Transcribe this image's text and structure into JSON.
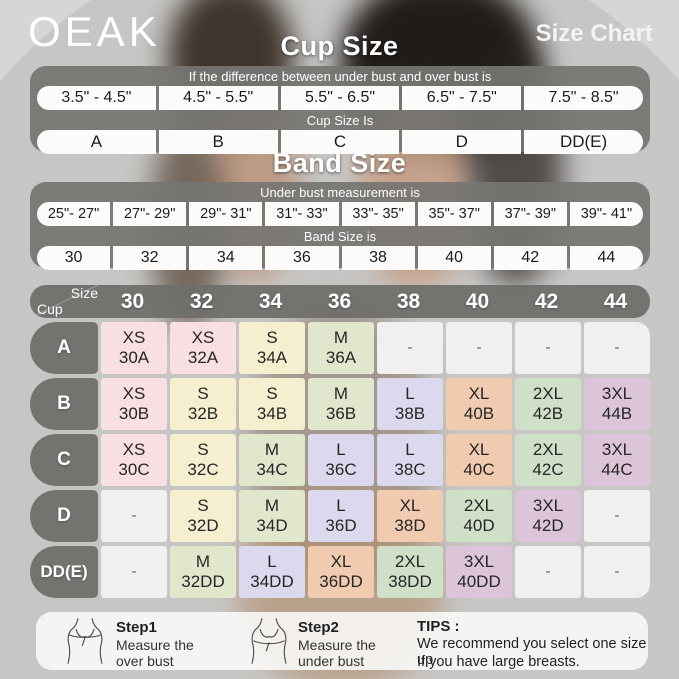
{
  "header": {
    "logo": "OEAK",
    "page_label": "Size Chart"
  },
  "cup_size": {
    "title": "Cup Size",
    "caption_top": "If the  difference between under bust and over bust is",
    "ranges": [
      "3.5\" -  4.5\"",
      "4.5\" -  5.5\"",
      "5.5\" -  6.5\"",
      "6.5\" -  7.5\"",
      "7.5\" -  8.5\""
    ],
    "caption_bottom": "Cup Size Is",
    "cups": [
      "A",
      "B",
      "C",
      "D",
      "DD(E)"
    ]
  },
  "band_size": {
    "title": "Band Size",
    "caption_top": "Under bust measurement is",
    "ranges": [
      "25\"- 27\"",
      "27\"- 29\"",
      "29\"- 31\"",
      "31\"- 33\"",
      "33\"- 35\"",
      "35\"- 37\"",
      "37\"- 39\"",
      "39\"- 41\""
    ],
    "caption_bottom": "Band Size is",
    "bands": [
      "30",
      "32",
      "34",
      "36",
      "38",
      "40",
      "42",
      "44"
    ]
  },
  "matrix": {
    "corner": {
      "top": "Size",
      "bottom": "Cup"
    },
    "columns": [
      "30",
      "32",
      "34",
      "36",
      "38",
      "40",
      "42",
      "44"
    ],
    "empty_placeholder": "-",
    "size_colors": {
      "XS": "#f8dfe1",
      "S": "#f6efcf",
      "M": "#e0e7cd",
      "L": "#dcd8ed",
      "XL": "#f1cbb0",
      "2XL": "#cfdfc8",
      "3XL": "#dcc5d8",
      "empty": "#f1eff0"
    },
    "rows": [
      {
        "cup": "A",
        "cells": [
          {
            "size": "XS",
            "code": "30A"
          },
          {
            "size": "XS",
            "code": "32A"
          },
          {
            "size": "S",
            "code": "34A"
          },
          {
            "size": "M",
            "code": "36A"
          },
          null,
          null,
          null,
          null
        ]
      },
      {
        "cup": "B",
        "cells": [
          {
            "size": "XS",
            "code": "30B"
          },
          {
            "size": "S",
            "code": "32B"
          },
          {
            "size": "S",
            "code": "34B"
          },
          {
            "size": "M",
            "code": "36B"
          },
          {
            "size": "L",
            "code": "38B"
          },
          {
            "size": "XL",
            "code": "40B"
          },
          {
            "size": "2XL",
            "code": "42B"
          },
          {
            "size": "3XL",
            "code": "44B"
          }
        ]
      },
      {
        "cup": "C",
        "cells": [
          {
            "size": "XS",
            "code": "30C"
          },
          {
            "size": "S",
            "code": "32C"
          },
          {
            "size": "M",
            "code": "34C"
          },
          {
            "size": "L",
            "code": "36C"
          },
          {
            "size": "L",
            "code": "38C"
          },
          {
            "size": "XL",
            "code": "40C"
          },
          {
            "size": "2XL",
            "code": "42C"
          },
          {
            "size": "3XL",
            "code": "44C"
          }
        ]
      },
      {
        "cup": "D",
        "cells": [
          null,
          {
            "size": "S",
            "code": "32D"
          },
          {
            "size": "M",
            "code": "34D"
          },
          {
            "size": "L",
            "code": "36D"
          },
          {
            "size": "XL",
            "code": "38D"
          },
          {
            "size": "2XL",
            "code": "40D"
          },
          {
            "size": "3XL",
            "code": "42D"
          },
          null
        ]
      },
      {
        "cup": "DD(E)",
        "cells": [
          null,
          {
            "size": "M",
            "code": "32DD"
          },
          {
            "size": "L",
            "code": "34DD"
          },
          {
            "size": "XL",
            "code": "36DD"
          },
          {
            "size": "2XL",
            "code": "38DD"
          },
          {
            "size": "3XL",
            "code": "40DD"
          },
          null,
          null
        ]
      }
    ]
  },
  "footer": {
    "steps": [
      {
        "label": "Step1",
        "lines": [
          "Measure the",
          "over bust"
        ]
      },
      {
        "label": "Step2",
        "lines": [
          "Measure the",
          "under bust"
        ]
      }
    ],
    "tips_label": "TIPS :",
    "tips_lines": [
      "We recommend you select one size up",
      "If you have large breasts."
    ]
  }
}
